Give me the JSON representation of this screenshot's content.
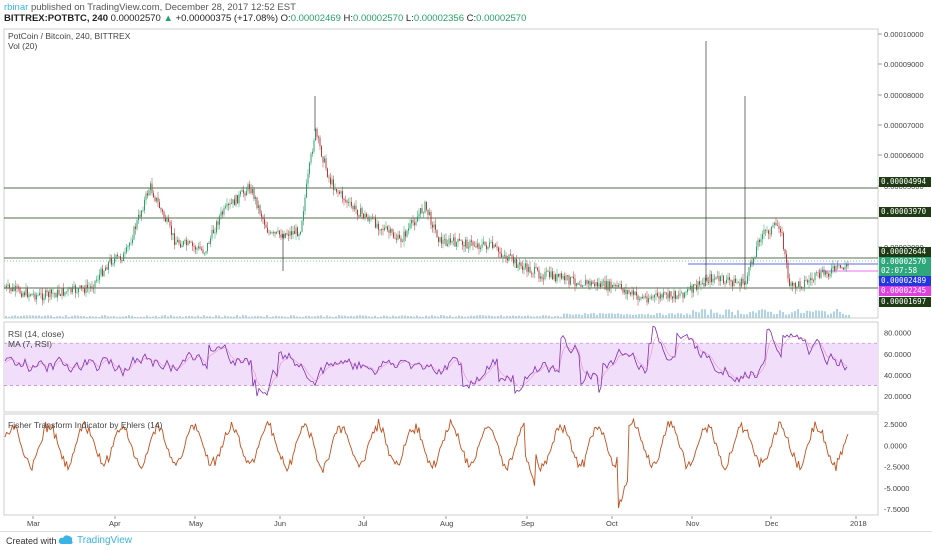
{
  "header": {
    "user": "rbinar",
    "published_text": "published on TradingView.com, December 28, 2017 12:52 EST",
    "symbol_line": "BITTREX:POTBTC, 240",
    "last_price": "0.00002570",
    "change": "+0.00000375 (+17.08%)",
    "open_label": "O:",
    "open": "0.00002469",
    "high_label": "H:",
    "high": "0.00002570",
    "low_label": "L:",
    "low": "0.00002356",
    "close_label": "C:",
    "close": "0.00002570"
  },
  "panes": {
    "price": {
      "title": "PotCoin / Bitcoin, 240, BITTREX",
      "volume_label": "Vol (20)"
    },
    "rsi": {
      "title": "RSI (14, close)",
      "ma_label": "MA (7, RSI)"
    },
    "fisher": {
      "title": "Fisher Transform Indicator by Ehlers (14)"
    }
  },
  "price_axis": [
    "0.00010000",
    "0.00009000",
    "0.00008000",
    "0.00007000",
    "0.00006000",
    "0.00005000",
    "0.00003000",
    "0.00002000"
  ],
  "price_tags": [
    {
      "label": "0.00004994",
      "color": "#1e3b14"
    },
    {
      "label": "0.00003970",
      "color": "#1e3b14"
    },
    {
      "label": "0.00002644",
      "color": "#1e3b14"
    },
    {
      "label": "0.00002570",
      "color": "#2ea87b"
    },
    {
      "label": "02:07:58",
      "color": "#2ea87b"
    },
    {
      "label": "0.00002489",
      "color": "#2436e0"
    },
    {
      "label": "0.00002245",
      "color": "#e040e0"
    },
    {
      "label": "0.00001697",
      "color": "#1e3b14"
    }
  ],
  "rsi_axis": [
    "80.0000",
    "60.0000",
    "40.0000",
    "20.0000"
  ],
  "fisher_axis": [
    "2.5000",
    "0.0000",
    "-2.5000",
    "-5.0000",
    "-7.5000"
  ],
  "time_axis": [
    "Mar",
    "Apr",
    "May",
    "Jun",
    "Jul",
    "Aug",
    "Sep",
    "Oct",
    "Nov",
    "Dec",
    "2018"
  ],
  "footer": {
    "created_with": "Created with",
    "brand": "TradingView"
  },
  "colors": {
    "candle_up": "#26a269",
    "candle_down": "#b33a3a",
    "rsi_line": "#7a2fb4",
    "rsi_band": "#f1defa",
    "fisher": "#c0501d",
    "hline": "#1e3b14"
  }
}
